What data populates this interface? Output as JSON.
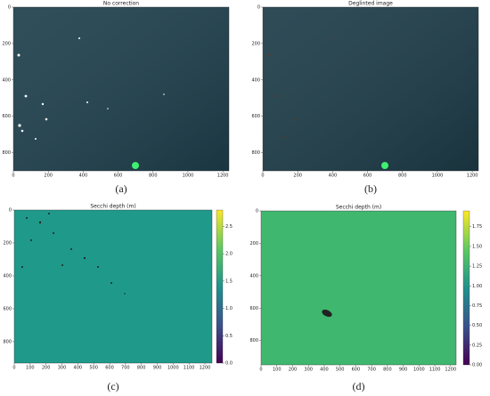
{
  "chart_data": [
    {
      "type": "image",
      "title": "No correction",
      "label": "(a)",
      "color": "#1e3f4c",
      "xlim": [
        0,
        1235
      ],
      "ylim": [
        900,
        0
      ],
      "xticks": [
        0,
        200,
        400,
        600,
        800,
        1000,
        1200
      ],
      "yticks": [
        0,
        200,
        400,
        600,
        800
      ]
    },
    {
      "type": "image",
      "title": "Deglinted image",
      "label": "(b)",
      "color": "#1d3c48",
      "xlim": [
        0,
        1235
      ],
      "ylim": [
        900,
        0
      ],
      "xticks": [
        0,
        200,
        400,
        600,
        800,
        1000,
        1200
      ],
      "yticks": [
        0,
        200,
        400,
        600,
        800
      ]
    },
    {
      "type": "heatmap",
      "title": "Secchi depth (m)",
      "label": "(c)",
      "color": "#1f9a8a",
      "xlim": [
        0,
        1245
      ],
      "ylim": [
        930,
        0
      ],
      "xticks": [
        0,
        100,
        200,
        300,
        400,
        500,
        600,
        700,
        800,
        900,
        1000,
        1100,
        1200
      ],
      "yticks": [
        0,
        200,
        400,
        600,
        800
      ],
      "clim": [
        0,
        2.8
      ],
      "cticks": [
        {
          "value": 0,
          "label": "0.0"
        },
        {
          "value": 0.5,
          "label": "0.5"
        },
        {
          "value": 1,
          "label": "1.0"
        },
        {
          "value": 1.5,
          "label": "1.5"
        },
        {
          "value": 2,
          "label": "2.0"
        },
        {
          "value": 2.5,
          "label": "2.5"
        }
      ]
    },
    {
      "type": "heatmap",
      "title": "Secchi depth (m)",
      "label": "(d)",
      "color": "#3fb76f",
      "xlim": [
        0,
        1235
      ],
      "ylim": [
        950,
        0
      ],
      "xticks": [
        0,
        100,
        200,
        300,
        400,
        500,
        600,
        700,
        800,
        900,
        1000,
        1100,
        1200
      ],
      "yticks": [
        0,
        200,
        400,
        600,
        800
      ],
      "clim": [
        0,
        1.95
      ],
      "cticks": [
        {
          "value": 0,
          "label": "0.00"
        },
        {
          "value": 0.25,
          "label": "0.25"
        },
        {
          "value": 0.5,
          "label": "0.50"
        },
        {
          "value": 0.75,
          "label": "0.75"
        },
        {
          "value": 1,
          "label": "1.00"
        },
        {
          "value": 1.25,
          "label": "1.25"
        },
        {
          "value": 1.5,
          "label": "1.50"
        },
        {
          "value": 1.75,
          "label": "1.75"
        }
      ]
    }
  ]
}
